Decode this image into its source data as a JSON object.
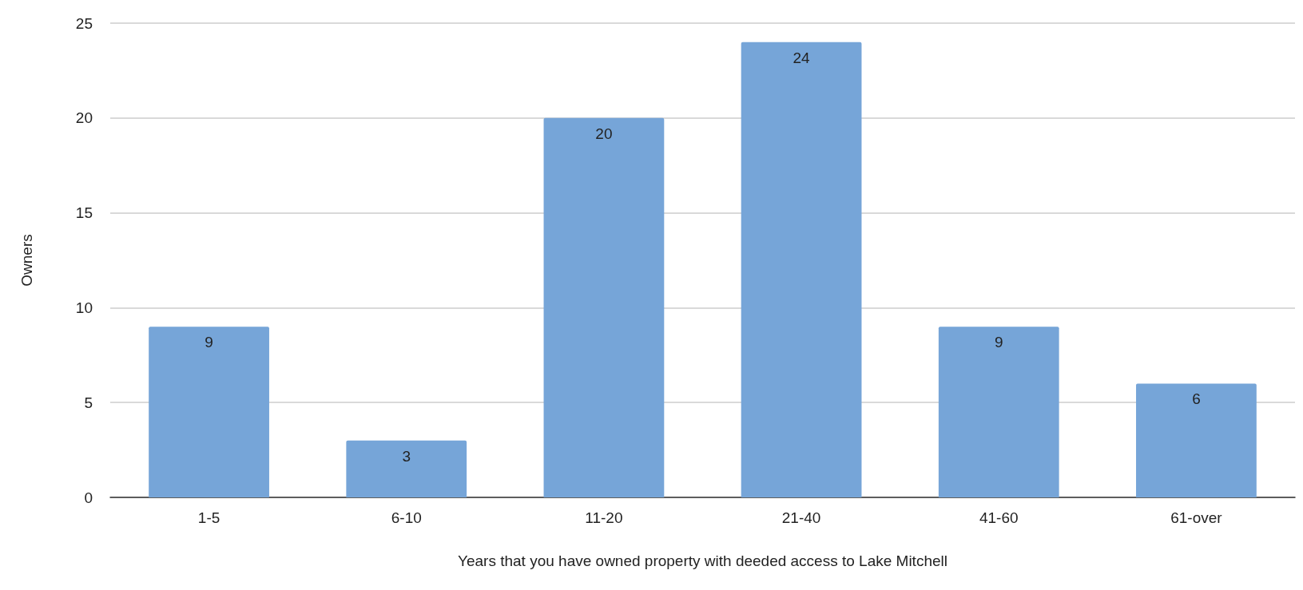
{
  "chart_data": {
    "type": "bar",
    "xlabel": "Years that you have owned property with deeded access to Lake Mitchell",
    "ylabel": "Owners",
    "categories": [
      "1-5",
      "6-10",
      "11-20",
      "21-40",
      "41-60",
      "61-over"
    ],
    "values": [
      9,
      3,
      20,
      24,
      9,
      6
    ],
    "color": "#76a5d8",
    "ylim": [
      0,
      25
    ],
    "yticks": [
      0,
      5,
      10,
      15,
      20,
      25
    ],
    "grid": "y",
    "data_labels": true
  }
}
